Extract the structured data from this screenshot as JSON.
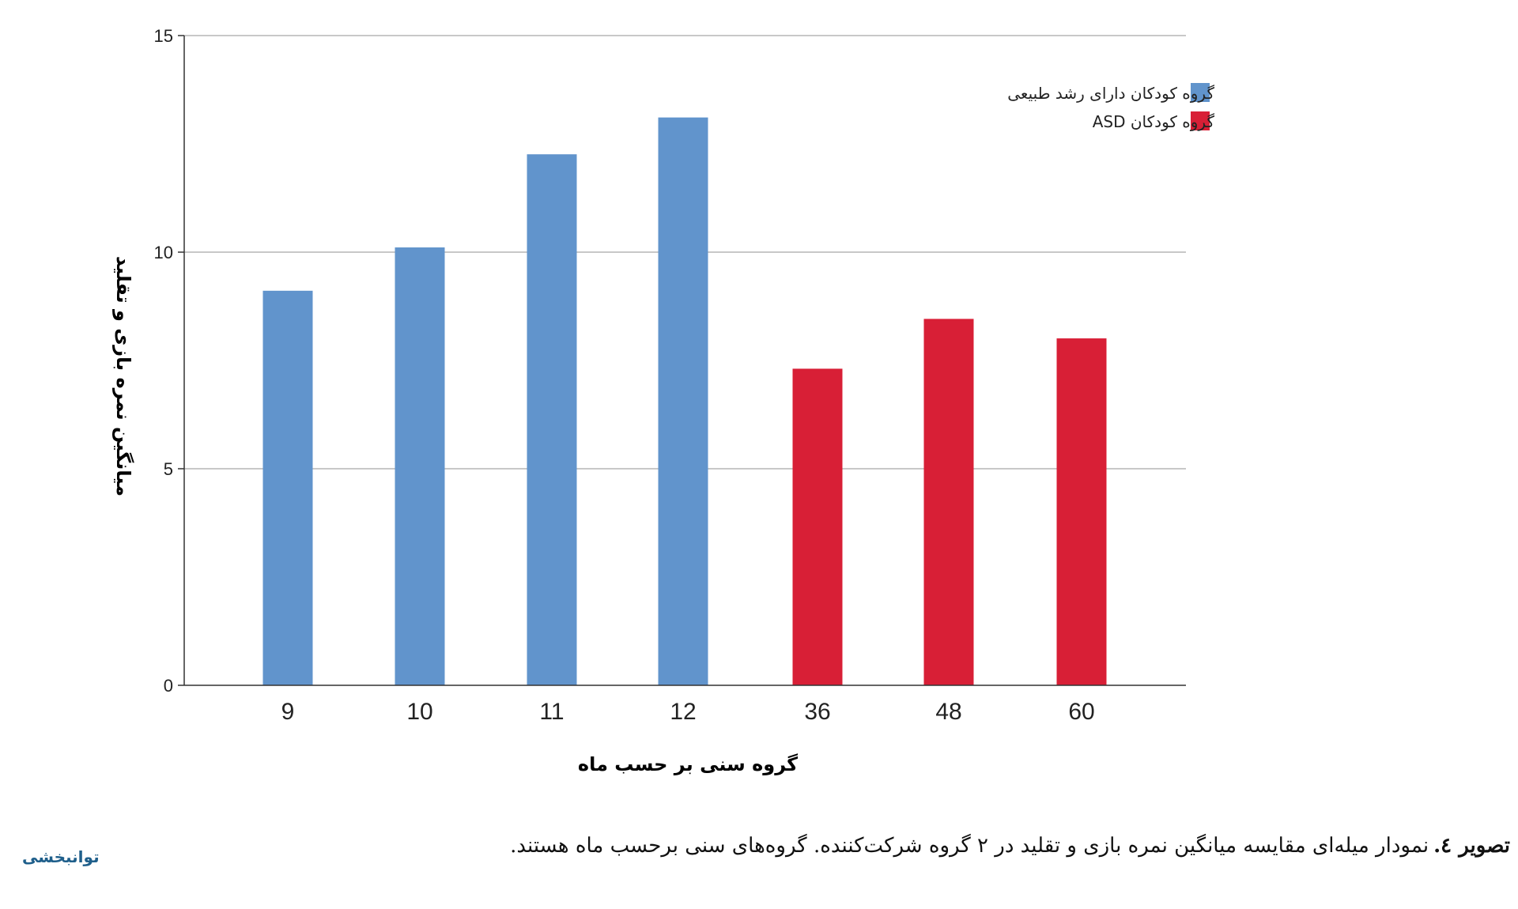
{
  "chart_data": {
    "type": "bar",
    "categories": [
      "9",
      "10",
      "11",
      "12",
      "36",
      "48",
      "60"
    ],
    "series": [
      {
        "name": "گروه کودکان دارای رشد طبیعی",
        "color": "#6194cc",
        "values": [
          9.1,
          10.1,
          12.25,
          13.1,
          null,
          null,
          null
        ]
      },
      {
        "name": "گروه کودکان ASD",
        "color": "#d81f36",
        "values": [
          null,
          null,
          null,
          null,
          7.3,
          8.45,
          8.0
        ]
      }
    ],
    "xlabel": "گروه سنی بر حسب ماه",
    "ylabel": "میانگین نمره بازی و تقلید",
    "ylim": [
      0,
      15
    ],
    "yticks": [
      "0",
      "5",
      "10",
      "15"
    ],
    "grid": true,
    "legend_position": "top-right"
  },
  "caption": {
    "label": "تصویر ٤.",
    "text": "نمودار میله‌ای مقایسه میانگین نمره بازی و تقلید در ۲ گروه شرکت‌کننده. گروه‌های سنی برحسب ماه هستند."
  },
  "logo": {
    "text": "توانبخشی"
  }
}
